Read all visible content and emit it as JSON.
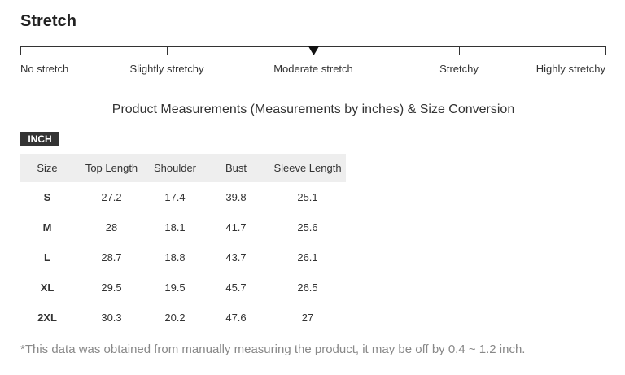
{
  "stretch": {
    "title": "Stretch",
    "levels": [
      "No stretch",
      "Slightly stretchy",
      "Moderate stretch",
      "Stretchy",
      "Highly stretchy"
    ]
  },
  "heading": "Product Measurements (Measurements by inches) & Size Conversion",
  "unit_badge": "INCH",
  "table": {
    "header": [
      "Size",
      "Top Length",
      "Shoulder",
      "Bust",
      "Sleeve Length"
    ],
    "rows": [
      [
        "S",
        "27.2",
        "17.4",
        "39.8",
        "25.1"
      ],
      [
        "M",
        "28",
        "18.1",
        "41.7",
        "25.6"
      ],
      [
        "L",
        "28.7",
        "18.8",
        "43.7",
        "26.1"
      ],
      [
        "XL",
        "29.5",
        "19.5",
        "45.7",
        "26.5"
      ],
      [
        "2XL",
        "30.3",
        "20.2",
        "47.6",
        "27"
      ]
    ]
  },
  "footnote": "*This data was obtained from manually measuring the product, it may be off by 0.4 ~ 1.2 inch."
}
